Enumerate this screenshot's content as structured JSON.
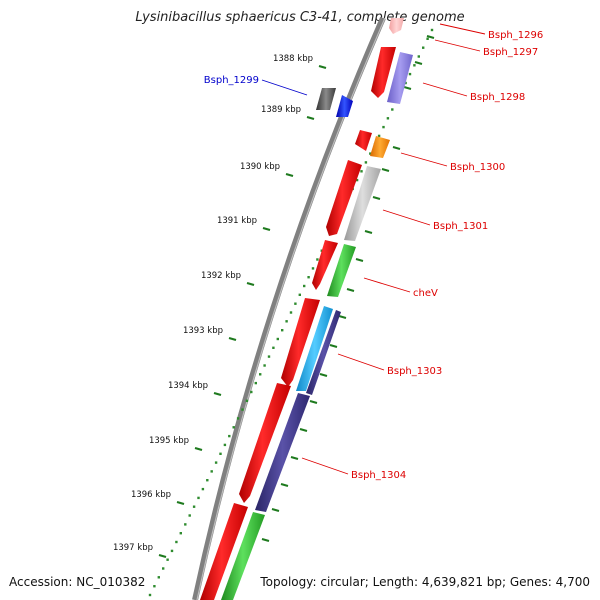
{
  "title": "Lysinibacillus sphaericus C3-41, complete genome",
  "footer": {
    "accession": "Accession: NC_010382",
    "summary": "Topology: circular; Length: 4,639,821 bp; Genes: 4,700"
  },
  "ticks": [
    "1388 kbp",
    "1389 kbp",
    "1390 kbp",
    "1391 kbp",
    "1392 kbp",
    "1393 kbp",
    "1394 kbp",
    "1395 kbp",
    "1396 kbp",
    "1397 kbp"
  ],
  "gene_labels": [
    {
      "text": "Bsph_1296",
      "color": "#dd0000"
    },
    {
      "text": "Bsph_1297",
      "color": "#dd0000"
    },
    {
      "text": "Bsph_1298",
      "color": "#dd0000"
    },
    {
      "text": "Bsph_1299",
      "color": "#0000cc"
    },
    {
      "text": "Bsph_1300",
      "color": "#dd0000"
    },
    {
      "text": "Bsph_1301",
      "color": "#dd0000"
    },
    {
      "text": "cheV",
      "color": "#dd0000"
    },
    {
      "text": "Bsph_1303",
      "color": "#dd0000"
    },
    {
      "text": "Bsph_1304",
      "color": "#dd0000"
    }
  ],
  "colors": {
    "backbone": "#808080",
    "ruler_dots": "#2e8b2e",
    "ruler_ticks": "#1e7a1e",
    "forward_strand": "#ee1111",
    "reverse_purple": "#3c3585",
    "reverse_green": "#33bb33",
    "cyan": "#22aaee",
    "orange": "#ff8800",
    "grey": "#bbbbbb",
    "dark_grey": "#555555",
    "blue": "#1111dd"
  },
  "icons": {
    "gene_arrow": "gene-arrow-icon"
  }
}
